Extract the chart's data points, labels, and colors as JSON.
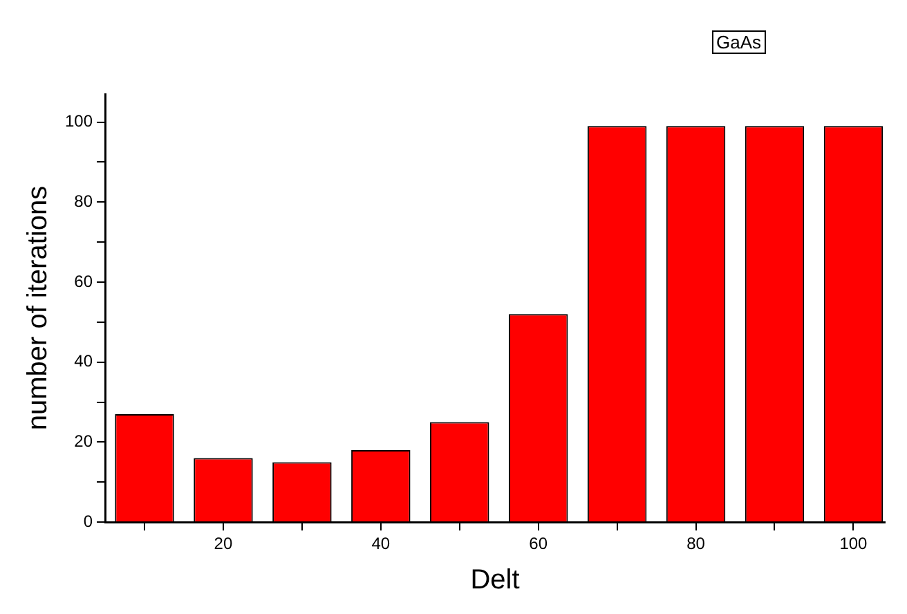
{
  "chart_data": {
    "type": "bar",
    "x": [
      10,
      20,
      30,
      40,
      50,
      60,
      70,
      80,
      90,
      100
    ],
    "values": [
      27,
      16,
      15,
      18,
      25,
      52,
      99,
      99,
      99,
      99
    ],
    "color": "#ff0000",
    "xlabel": "Delt",
    "ylabel": "number of iterations",
    "annotations": [
      "GaAs"
    ],
    "xlim": [
      5,
      104
    ],
    "ylim": [
      0,
      107
    ],
    "xticks": [
      {
        "value": 10,
        "label": null
      },
      20,
      {
        "value": 30,
        "label": null
      },
      40,
      {
        "value": 50,
        "label": null
      },
      60,
      {
        "value": 70,
        "label": null
      },
      80,
      {
        "value": 90,
        "label": null
      },
      100
    ],
    "yticks": [
      0,
      {
        "value": 10,
        "label": null
      },
      20,
      {
        "value": 30,
        "label": null
      },
      40,
      {
        "value": 50,
        "label": null
      },
      60,
      {
        "value": 70,
        "label": null
      },
      80,
      {
        "value": 90,
        "label": null
      },
      100
    ],
    "grid": false,
    "legend": false
  }
}
